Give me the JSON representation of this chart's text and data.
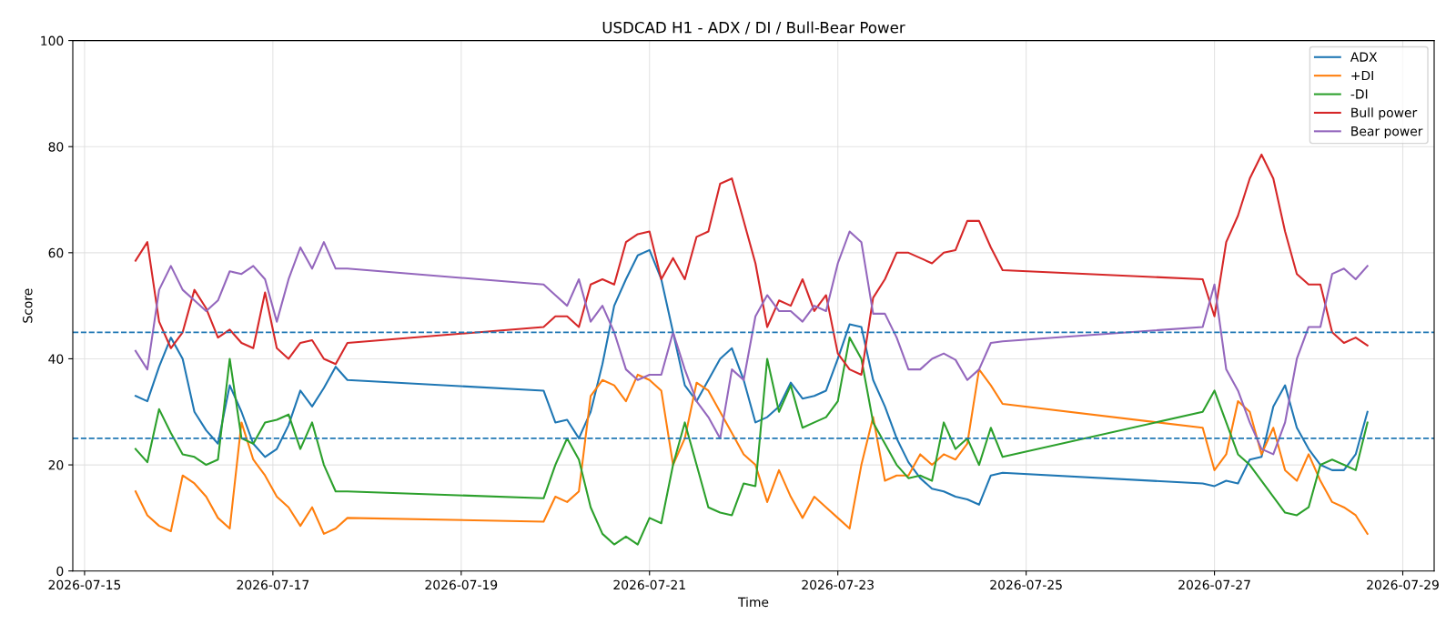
{
  "chart_data": {
    "type": "line",
    "title": "USDCAD H1 - ADX / DI / Bull-Bear Power",
    "xlabel": "Time",
    "ylabel": "Score",
    "x": [
      "2026-07-15T13:00",
      "2026-07-15T16:00",
      "2026-07-15T19:00",
      "2026-07-15T22:00",
      "2026-07-16T01:00",
      "2026-07-16T04:00",
      "2026-07-16T07:00",
      "2026-07-16T10:00",
      "2026-07-16T13:00",
      "2026-07-16T16:00",
      "2026-07-16T19:00",
      "2026-07-16T22:00",
      "2026-07-17T01:00",
      "2026-07-17T04:00",
      "2026-07-17T07:00",
      "2026-07-17T10:00",
      "2026-07-17T13:00",
      "2026-07-17T16:00",
      "2026-07-17T19:00",
      "2026-07-19T21:00",
      "2026-07-20T00:00",
      "2026-07-20T03:00",
      "2026-07-20T06:00",
      "2026-07-20T09:00",
      "2026-07-20T12:00",
      "2026-07-20T15:00",
      "2026-07-20T18:00",
      "2026-07-20T21:00",
      "2026-07-21T00:00",
      "2026-07-21T03:00",
      "2026-07-21T06:00",
      "2026-07-21T09:00",
      "2026-07-21T12:00",
      "2026-07-21T15:00",
      "2026-07-21T18:00",
      "2026-07-21T21:00",
      "2026-07-22T00:00",
      "2026-07-22T03:00",
      "2026-07-22T06:00",
      "2026-07-22T09:00",
      "2026-07-22T12:00",
      "2026-07-22T15:00",
      "2026-07-22T18:00",
      "2026-07-22T21:00",
      "2026-07-23T00:00",
      "2026-07-23T03:00",
      "2026-07-23T06:00",
      "2026-07-23T09:00",
      "2026-07-23T12:00",
      "2026-07-23T15:00",
      "2026-07-23T18:00",
      "2026-07-23T21:00",
      "2026-07-24T00:00",
      "2026-07-24T03:00",
      "2026-07-24T06:00",
      "2026-07-24T09:00",
      "2026-07-24T12:00",
      "2026-07-24T15:00",
      "2026-07-24T18:00",
      "2026-07-26T21:00",
      "2026-07-27T00:00",
      "2026-07-27T03:00",
      "2026-07-27T06:00",
      "2026-07-27T09:00",
      "2026-07-27T12:00",
      "2026-07-27T15:00",
      "2026-07-27T18:00",
      "2026-07-27T21:00",
      "2026-07-28T00:00",
      "2026-07-28T03:00",
      "2026-07-28T06:00",
      "2026-07-28T09:00",
      "2026-07-28T12:00",
      "2026-07-28T15:00"
    ],
    "series": [
      {
        "name": "ADX",
        "color": "#1f77b4",
        "values": [
          33,
          32,
          38.5,
          44,
          40,
          30,
          26.5,
          24,
          35,
          30,
          24,
          21.5,
          23,
          27.5,
          34,
          31,
          34.5,
          38.5,
          36,
          34,
          28,
          28.5,
          25,
          30,
          39,
          50,
          55,
          59.5,
          60.5,
          55,
          45,
          35,
          32,
          36,
          40,
          42,
          36,
          28,
          29,
          31,
          35.5,
          32.5,
          33,
          34,
          40,
          46.5,
          46,
          36,
          31,
          25,
          20.5,
          17.5,
          15.5,
          15,
          14,
          13.5,
          12.5,
          18,
          18.5,
          16.5,
          16,
          17,
          16.5,
          21,
          21.5,
          31,
          35,
          27,
          23,
          20,
          19,
          19,
          22,
          30
        ]
      },
      {
        "name": "+DI",
        "color": "#ff7f0e",
        "values": [
          15,
          10.5,
          8.5,
          7.5,
          18,
          16.5,
          14,
          10,
          8,
          28,
          21,
          18,
          14,
          12,
          8.5,
          12,
          7,
          8,
          10,
          9.3,
          14,
          13,
          15,
          33,
          36,
          35,
          32,
          37,
          36,
          34,
          20,
          25,
          35.5,
          34,
          30,
          26,
          22,
          20,
          13,
          19,
          14,
          10,
          14,
          12,
          10,
          8,
          20,
          29,
          17,
          18,
          18,
          22,
          20,
          22,
          21,
          24,
          38,
          35,
          31.5,
          27,
          19,
          22,
          32,
          30,
          22,
          27,
          19,
          17,
          22,
          17,
          13,
          12,
          10.5,
          7
        ]
      },
      {
        "name": "-DI",
        "color": "#2ca02c",
        "values": [
          23,
          20.5,
          30.5,
          26,
          22,
          21.5,
          20,
          21,
          40,
          25,
          24,
          28,
          28.5,
          29.5,
          23,
          28,
          20,
          15,
          15,
          13.7,
          20,
          25,
          21,
          12,
          7,
          5,
          6.5,
          5,
          10,
          9,
          20,
          28,
          20,
          12,
          11,
          10.5,
          16.5,
          16,
          40,
          30,
          35,
          27,
          28,
          29,
          32,
          44,
          40,
          28,
          24,
          20,
          17.5,
          18,
          17,
          28,
          23,
          25,
          20,
          27,
          21.5,
          30,
          34,
          28,
          22,
          20,
          17,
          14,
          11,
          10.5,
          12,
          20,
          21,
          20,
          19,
          28
        ]
      },
      {
        "name": "Bull power",
        "color": "#d62728",
        "values": [
          58.5,
          62,
          47,
          42,
          45,
          53,
          49.5,
          44,
          45.5,
          43,
          42,
          52.5,
          42,
          40,
          43,
          43.5,
          40,
          39,
          43,
          46,
          48,
          48,
          46,
          54,
          55,
          54,
          62,
          63.5,
          64,
          55,
          59,
          55,
          63,
          64,
          73,
          74,
          66,
          58,
          46,
          51,
          50,
          55,
          49,
          52,
          41,
          38,
          37,
          51.5,
          55,
          60,
          60,
          59,
          58,
          60,
          60.5,
          66,
          66,
          61,
          56.7,
          55,
          48,
          62,
          67,
          74,
          78.5,
          74,
          64,
          56,
          54,
          54,
          45,
          43,
          44,
          42.5
        ]
      },
      {
        "name": "Bear power",
        "color": "#9467bd",
        "values": [
          41.5,
          38,
          53,
          57.5,
          53,
          51,
          49,
          51,
          56.5,
          56,
          57.5,
          55,
          47,
          55,
          61,
          57,
          62,
          57,
          57,
          54,
          52,
          50,
          55,
          47,
          50,
          45,
          38,
          36,
          37,
          37,
          45,
          38,
          32,
          29,
          25,
          38,
          36,
          48,
          52,
          49,
          49,
          47,
          50,
          49,
          58,
          64,
          62,
          48.5,
          48.5,
          44,
          38,
          38,
          40,
          41,
          39.8,
          36,
          38,
          43,
          43.3,
          46,
          54,
          38,
          34,
          28,
          23,
          22,
          28,
          40,
          46,
          46,
          56,
          57,
          55,
          57.5
        ]
      }
    ],
    "ref_lines": [
      {
        "axis": "y",
        "value": 45,
        "color": "#1f77b4",
        "line_style": "dashed"
      },
      {
        "axis": "y",
        "value": 25,
        "color": "#1f77b4",
        "line_style": "dashed"
      }
    ],
    "xlim": [
      "2026-07-14T21:00",
      "2026-07-29T08:00"
    ],
    "xticks": [
      "2026-07-15",
      "2026-07-17",
      "2026-07-19",
      "2026-07-21",
      "2026-07-23",
      "2026-07-25",
      "2026-07-27",
      "2026-07-29"
    ],
    "ylim": [
      0,
      100
    ],
    "yticks": [
      0,
      20,
      40,
      60,
      80,
      100
    ],
    "grid": true,
    "legend": "top right",
    "marker": "none",
    "line_style": "solid"
  }
}
